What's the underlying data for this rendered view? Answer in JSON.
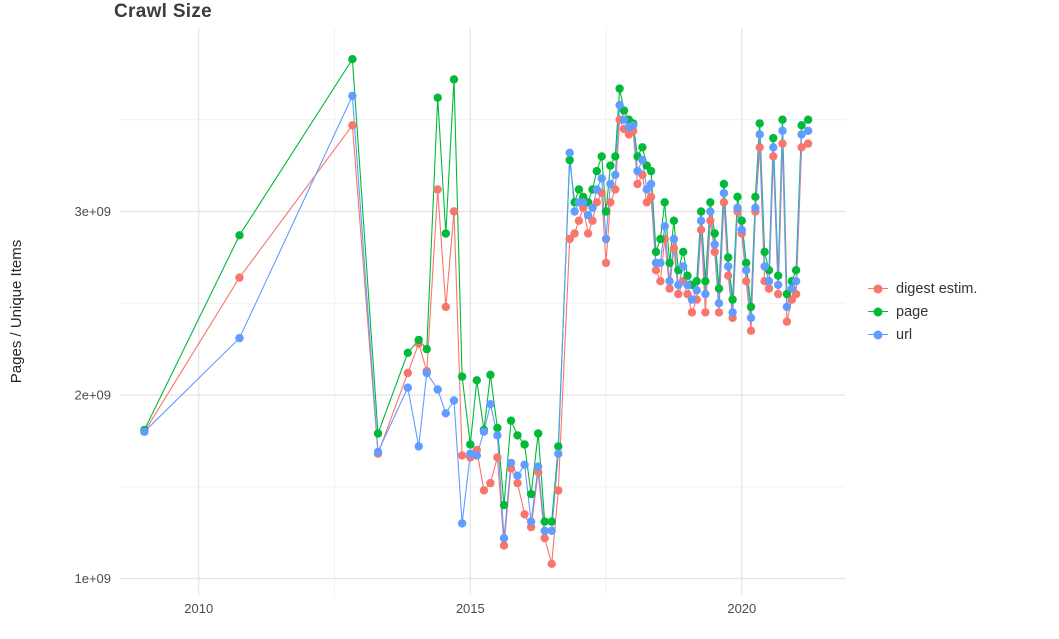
{
  "chart_data": {
    "type": "line",
    "markers": true,
    "title": "Crawl Size",
    "ylabel": "Pages / Unique Items",
    "xlabel": "",
    "value_unit_scale": "1e9",
    "style": {
      "background": "#ffffff",
      "grid_major": "#e3e3e3",
      "grid_minor": "#f1f1f1",
      "tick_color": "#4d4d4d"
    },
    "axes": {
      "x": {
        "min": 2008.55,
        "max": 2021.9,
        "ticks": [
          {
            "value": 2010,
            "label": "2010"
          },
          {
            "value": 2015,
            "label": "2015"
          },
          {
            "value": 2020,
            "label": "2020"
          }
        ],
        "minor": [
          2012.5,
          2017.5
        ]
      },
      "y": {
        "min": 0.91,
        "max": 4.0,
        "ticks": [
          {
            "value": 1,
            "label": "1e+09"
          },
          {
            "value": 2,
            "label": "2e+09"
          },
          {
            "value": 3,
            "label": "3e+09"
          }
        ],
        "minor": [
          1.5,
          2.5,
          3.5
        ]
      }
    },
    "x": [
      2009.0,
      2010.75,
      2012.83,
      2013.3,
      2013.85,
      2014.05,
      2014.2,
      2014.4,
      2014.55,
      2014.7,
      2014.85,
      2015.0,
      2015.12,
      2015.25,
      2015.37,
      2015.5,
      2015.62,
      2015.75,
      2015.87,
      2016.0,
      2016.12,
      2016.25,
      2016.37,
      2016.5,
      2016.62,
      2016.83,
      2016.92,
      2017.0,
      2017.08,
      2017.17,
      2017.25,
      2017.33,
      2017.42,
      2017.5,
      2017.58,
      2017.67,
      2017.75,
      2017.83,
      2017.92,
      2018.0,
      2018.08,
      2018.17,
      2018.25,
      2018.33,
      2018.42,
      2018.5,
      2018.58,
      2018.67,
      2018.75,
      2018.83,
      2018.92,
      2019.0,
      2019.08,
      2019.17,
      2019.25,
      2019.33,
      2019.42,
      2019.5,
      2019.58,
      2019.67,
      2019.75,
      2019.83,
      2019.92,
      2020.0,
      2020.08,
      2020.17,
      2020.25,
      2020.33,
      2020.42,
      2020.5,
      2020.58,
      2020.67,
      2020.75,
      2020.83,
      2020.92,
      2021.0,
      2021.1,
      2021.22
    ],
    "series": [
      {
        "name": "digest estim.",
        "color": "#f8766d",
        "values": [
          1.8,
          2.64,
          3.47,
          1.68,
          2.12,
          2.28,
          2.13,
          3.12,
          2.48,
          3.0,
          1.67,
          1.66,
          1.7,
          1.48,
          1.52,
          1.66,
          1.18,
          1.6,
          1.52,
          1.35,
          1.28,
          1.58,
          1.22,
          1.08,
          1.48,
          2.85,
          2.88,
          2.95,
          3.02,
          2.88,
          2.95,
          3.05,
          3.1,
          2.72,
          3.05,
          3.12,
          3.5,
          3.45,
          3.42,
          3.44,
          3.15,
          3.2,
          3.05,
          3.08,
          2.68,
          2.62,
          2.85,
          2.58,
          2.8,
          2.55,
          2.62,
          2.55,
          2.45,
          2.52,
          2.9,
          2.45,
          2.95,
          2.78,
          2.45,
          3.05,
          2.65,
          2.42,
          3.0,
          2.88,
          2.62,
          2.35,
          3.0,
          3.35,
          2.62,
          2.58,
          3.3,
          2.55,
          3.37,
          2.4,
          2.52,
          2.55,
          3.35,
          3.37
        ]
      },
      {
        "name": "page",
        "color": "#00ba38",
        "values": [
          1.81,
          2.87,
          3.83,
          1.79,
          2.23,
          2.3,
          2.25,
          3.62,
          2.88,
          3.72,
          2.1,
          1.73,
          2.08,
          1.81,
          2.11,
          1.82,
          1.4,
          1.86,
          1.78,
          1.73,
          1.46,
          1.79,
          1.31,
          1.31,
          1.72,
          3.28,
          3.05,
          3.12,
          3.08,
          3.05,
          3.12,
          3.22,
          3.3,
          3.0,
          3.25,
          3.3,
          3.67,
          3.55,
          3.5,
          3.48,
          3.3,
          3.35,
          3.25,
          3.22,
          2.78,
          2.85,
          3.05,
          2.72,
          2.95,
          2.68,
          2.78,
          2.65,
          2.6,
          2.62,
          3.0,
          2.62,
          3.05,
          2.88,
          2.58,
          3.15,
          2.75,
          2.52,
          3.08,
          2.95,
          2.72,
          2.48,
          3.08,
          3.48,
          2.78,
          2.68,
          3.4,
          2.65,
          3.5,
          2.55,
          2.62,
          2.68,
          3.47,
          3.5
        ]
      },
      {
        "name": "url",
        "color": "#619cff",
        "values": [
          1.8,
          2.31,
          3.63,
          1.69,
          2.04,
          1.72,
          2.12,
          2.03,
          1.9,
          1.97,
          1.3,
          1.68,
          1.67,
          1.8,
          1.95,
          1.78,
          1.22,
          1.63,
          1.56,
          1.62,
          1.31,
          1.61,
          1.26,
          1.26,
          1.68,
          3.32,
          3.0,
          3.05,
          3.05,
          2.98,
          3.02,
          3.12,
          3.18,
          2.85,
          3.15,
          3.2,
          3.58,
          3.5,
          3.46,
          3.47,
          3.22,
          3.28,
          3.12,
          3.15,
          2.72,
          2.72,
          2.92,
          2.62,
          2.85,
          2.6,
          2.7,
          2.6,
          2.52,
          2.57,
          2.95,
          2.55,
          3.0,
          2.82,
          2.5,
          3.1,
          2.7,
          2.45,
          3.02,
          2.9,
          2.68,
          2.42,
          3.02,
          3.42,
          2.7,
          2.62,
          3.35,
          2.6,
          3.44,
          2.48,
          2.58,
          2.62,
          3.42,
          3.44
        ]
      }
    ],
    "legend": {
      "position": "right",
      "items": [
        "digest estim.",
        "page",
        "url"
      ]
    }
  }
}
